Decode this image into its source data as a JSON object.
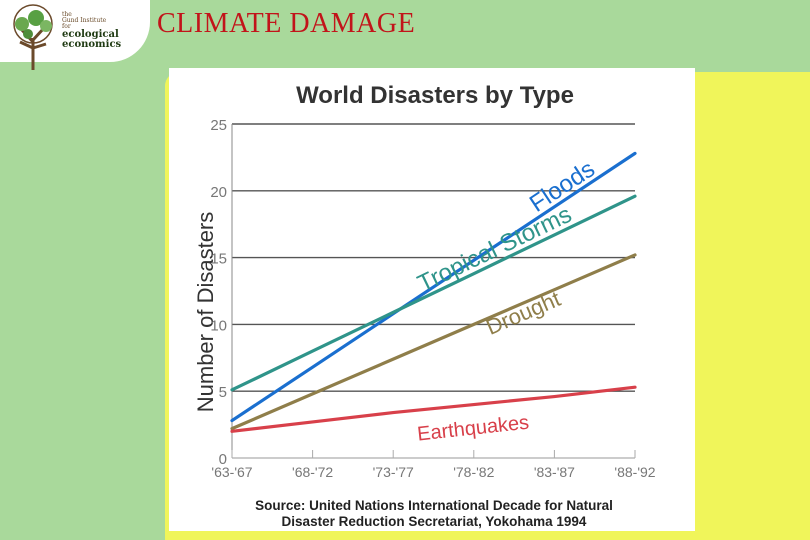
{
  "logo": {
    "line1": "the",
    "line2": "Gund Institute",
    "line3": "for",
    "line4": "ecological",
    "line5": "economics"
  },
  "slide_title": "CLIMATE DAMAGE",
  "colors": {
    "background": "#a9d99b",
    "panel": "#f0f55a",
    "title": "#c2141a"
  },
  "chart_data": {
    "type": "line",
    "title": "World Disasters by Type",
    "ylabel": "Number of Disasters",
    "xlabel": "",
    "categories": [
      "'63-'67",
      "'68-'72",
      "'73-'77",
      "'78-'82",
      "'83-'87",
      "'88-'92"
    ],
    "x_tick_labels": [
      "'63-'67",
      "'68-'72",
      "'73-'77",
      "'78-'82",
      "'83-'87",
      "'88-'92"
    ],
    "y_ticks": [
      0,
      5,
      10,
      15,
      20,
      25
    ],
    "ylim": [
      0,
      25
    ],
    "grid": true,
    "series": [
      {
        "name": "Floods",
        "color": "#1a6fcf",
        "values": [
          2.8,
          6.8,
          10.8,
          14.8,
          18.8,
          22.8
        ]
      },
      {
        "name": "Tropical Storms",
        "color": "#2f948a",
        "values": [
          5.1,
          8.0,
          10.9,
          13.8,
          16.7,
          19.6
        ]
      },
      {
        "name": "Drought",
        "color": "#8f7e4a",
        "values": [
          2.2,
          4.8,
          7.4,
          10.0,
          12.6,
          15.2
        ]
      },
      {
        "name": "Earthquakes",
        "color": "#d8404a",
        "values": [
          2.0,
          2.7,
          3.4,
          4.0,
          4.6,
          5.3
        ]
      }
    ],
    "source_line1": "Source: United Nations International Decade for Natural",
    "source_line2": "Disaster Reduction Secretariat, Yokohama 1994"
  }
}
